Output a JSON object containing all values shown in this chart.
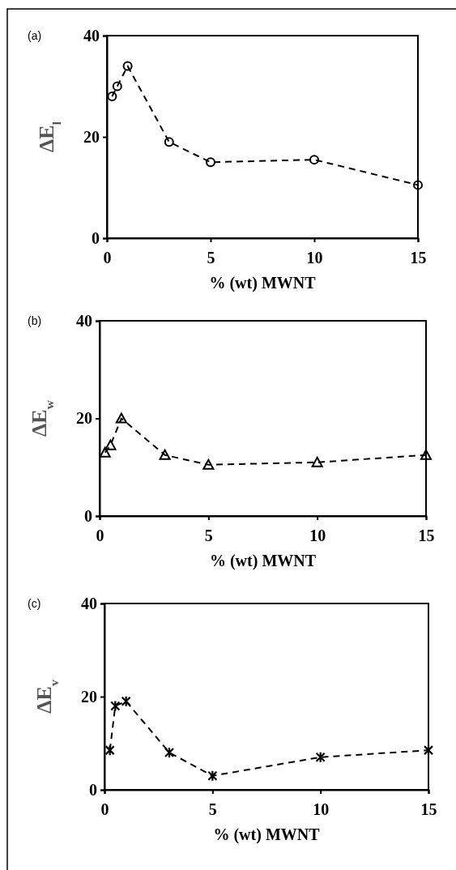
{
  "chart_data": [
    {
      "type": "line",
      "title": "(a)",
      "xlabel": "% (wt) MWNT",
      "ylabel": "ΔE$_{l}$",
      "x": [
        0.25,
        0.5,
        1,
        3,
        5,
        10,
        15
      ],
      "series": [
        {
          "color": "#000000",
          "values": [
            28,
            30,
            34,
            19,
            15,
            15.5,
            10.5
          ]
        }
      ],
      "xlim": [
        0,
        15
      ],
      "xticks": [
        0,
        5,
        10,
        15
      ],
      "ylim": [
        0,
        40
      ],
      "yticks": [
        0,
        20,
        40
      ],
      "grid": false,
      "marker": "circle",
      "line_style": "dashed"
    },
    {
      "type": "line",
      "title": "(b)",
      "xlabel": "% (wt) MWNT",
      "ylabel": "ΔE$_{w}$",
      "x": [
        0.25,
        0.5,
        1,
        3,
        5,
        10,
        15
      ],
      "series": [
        {
          "color": "#000000",
          "values": [
            13,
            14.5,
            20,
            12.5,
            10.5,
            11,
            12.5
          ]
        }
      ],
      "xlim": [
        0,
        15
      ],
      "xticks": [
        0,
        5,
        10,
        15
      ],
      "ylim": [
        0,
        40
      ],
      "yticks": [
        0,
        20,
        40
      ],
      "grid": false,
      "marker": "triangle",
      "line_style": "dashed"
    },
    {
      "type": "line",
      "title": "(c)",
      "xlabel": "% (wt) MWNT",
      "ylabel": "ΔE$_{v}$",
      "x": [
        0.25,
        0.5,
        1,
        3,
        5,
        10,
        15
      ],
      "series": [
        {
          "color": "#000000",
          "values": [
            8.5,
            18,
            19,
            8,
            3,
            7,
            8.5
          ]
        }
      ],
      "xlim": [
        0,
        15
      ],
      "xticks": [
        0,
        5,
        10,
        15
      ],
      "ylim": [
        0,
        40
      ],
      "yticks": [
        0,
        20,
        40
      ],
      "grid": false,
      "marker": "cross",
      "line_style": "dashed"
    }
  ]
}
